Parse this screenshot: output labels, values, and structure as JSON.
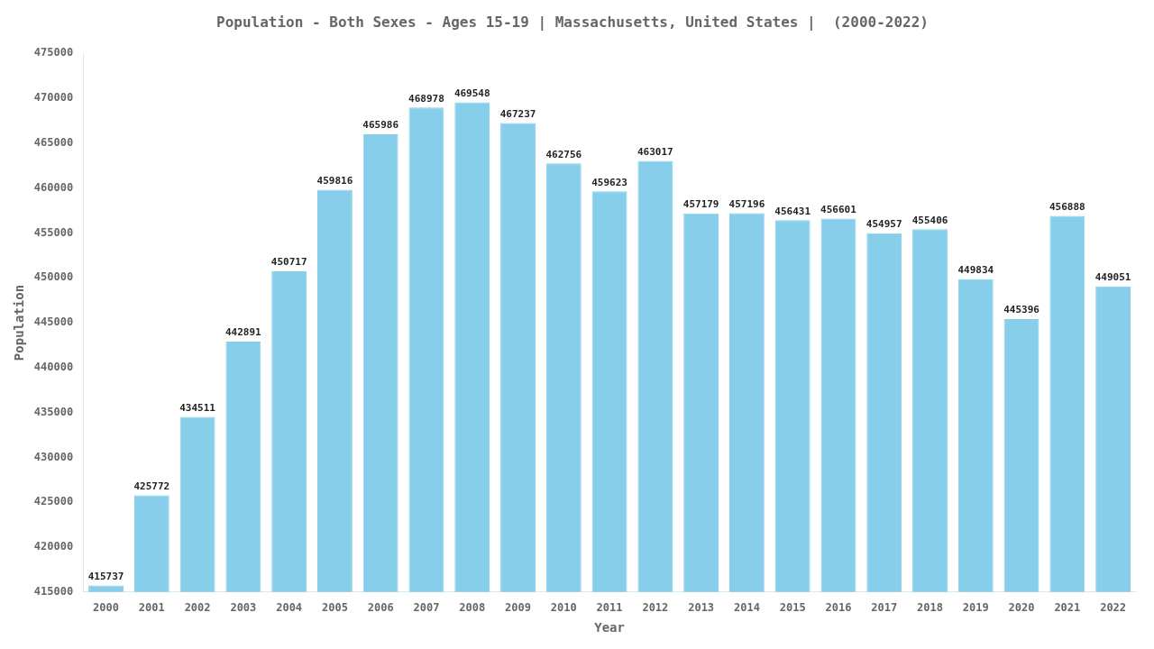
{
  "chart_data": {
    "type": "bar",
    "title": "Population - Both Sexes - Ages 15-19 | Massachusetts, United States |  (2000-2022)",
    "x_label": "Year",
    "y_label": "Population",
    "categories": [
      "2000",
      "2001",
      "2002",
      "2003",
      "2004",
      "2005",
      "2006",
      "2007",
      "2008",
      "2009",
      "2010",
      "2011",
      "2012",
      "2013",
      "2014",
      "2015",
      "2016",
      "2017",
      "2018",
      "2019",
      "2020",
      "2021",
      "2022"
    ],
    "values": [
      415737,
      425772,
      434511,
      442891,
      450717,
      459816,
      465986,
      468978,
      469548,
      467237,
      462756,
      459623,
      463017,
      457179,
      457196,
      456431,
      456601,
      454957,
      455406,
      449834,
      445396,
      456888,
      449051
    ],
    "color": "#87CEEB",
    "ylim": [
      415000,
      475000
    ],
    "yticks": [
      415000,
      420000,
      425000,
      430000,
      435000,
      440000,
      445000,
      450000,
      455000,
      460000,
      465000,
      470000,
      475000
    ],
    "grid": false,
    "data_labels": true
  }
}
